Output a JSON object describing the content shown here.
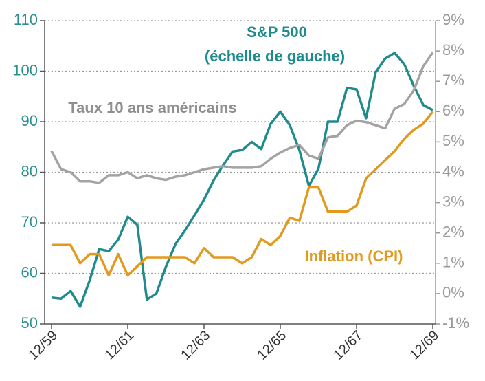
{
  "chart_data": {
    "type": "line",
    "annotations": [
      "S&P 500",
      "(échelle de gauche)",
      "Taux 10 ans américains",
      "Inflation (CPI)"
    ],
    "categories": [
      "12/59",
      null,
      null,
      null,
      null,
      null,
      null,
      null,
      "12/61",
      null,
      null,
      null,
      null,
      null,
      null,
      null,
      "12/63",
      null,
      null,
      null,
      null,
      null,
      null,
      null,
      "12/65",
      null,
      null,
      null,
      null,
      null,
      null,
      null,
      "12/67",
      null,
      null,
      null,
      null,
      null,
      null,
      null,
      "12/69"
    ],
    "series": [
      {
        "name": "S&P 500",
        "color": "#1f8b8d",
        "axis": "y",
        "values": [
          55.2,
          55,
          56.5,
          53.4,
          58.6,
          64.8,
          64.4,
          66.7,
          71.2,
          69.6,
          54.8,
          56,
          61.3,
          65.8,
          68.5,
          71.5,
          74.6,
          78.4,
          81.4,
          84.1,
          84.4,
          86,
          84.6,
          89.6,
          92,
          89.3,
          84.4,
          77.3,
          80.7,
          90,
          90,
          96.7,
          96.4,
          90.7,
          99.8,
          102.5,
          103.6,
          101.4,
          97.1,
          93.3,
          92.3
        ]
      },
      {
        "name": "Taux 10 ans américains",
        "color": "#a3a3a3",
        "axis": "y2",
        "values": [
          4.7,
          4.1,
          4.0,
          3.7,
          3.7,
          3.65,
          3.9,
          3.9,
          4.0,
          3.8,
          3.9,
          3.8,
          3.75,
          3.85,
          3.9,
          4.0,
          4.1,
          4.15,
          4.2,
          4.15,
          4.15,
          4.15,
          4.2,
          4.45,
          4.65,
          4.8,
          4.9,
          4.55,
          4.45,
          5.15,
          5.2,
          5.55,
          5.7,
          5.65,
          5.55,
          5.45,
          6.1,
          6.25,
          6.7,
          7.5,
          7.95
        ]
      },
      {
        "name": "Inflation (CPI)",
        "color": "#e29a1e",
        "axis": "y2",
        "values": [
          1.6,
          1.6,
          1.6,
          1.0,
          1.3,
          1.3,
          0.6,
          1.3,
          0.6,
          0.9,
          1.2,
          1.2,
          1.2,
          1.2,
          1.2,
          1.0,
          1.5,
          1.2,
          1.2,
          1.2,
          1.0,
          1.2,
          1.8,
          1.6,
          1.9,
          2.5,
          2.4,
          3.5,
          3.5,
          2.7,
          2.7,
          2.7,
          2.9,
          3.8,
          4.1,
          4.4,
          4.7,
          5.1,
          5.4,
          5.6,
          6.0
        ]
      }
    ],
    "ylim": [
      50,
      110
    ],
    "yticks": [
      50,
      60,
      70,
      80,
      90,
      100,
      110
    ],
    "y2lim": [
      -1,
      9
    ],
    "y2ticks": [
      {
        "value": -1,
        "label": "-1%"
      },
      {
        "value": 0,
        "label": "0%"
      },
      {
        "value": 1,
        "label": "1%"
      },
      {
        "value": 2,
        "label": "2%"
      },
      {
        "value": 3,
        "label": "3%"
      },
      {
        "value": 4,
        "label": "4%"
      },
      {
        "value": 5,
        "label": "5%"
      },
      {
        "value": 6,
        "label": "6%"
      },
      {
        "value": 7,
        "label": "7%"
      },
      {
        "value": 8,
        "label": "8%"
      },
      {
        "value": 9,
        "label": "9%"
      }
    ],
    "grid": true
  }
}
